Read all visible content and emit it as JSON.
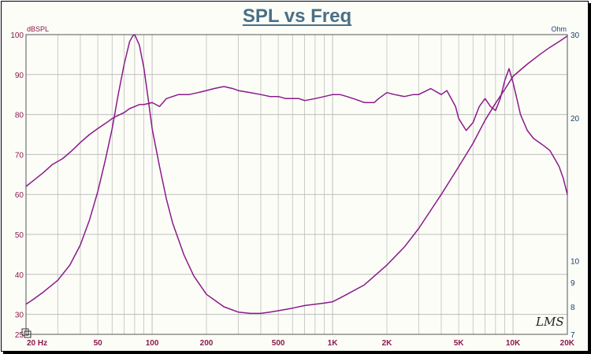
{
  "chart_data": {
    "type": "line",
    "title": "SPL vs Freq",
    "watermark": "LMS",
    "colors": {
      "title": "#4a6f86",
      "axis_left": "#8b1a4a",
      "axis_right": "#1f3f6f",
      "axis_bottom": "#8b1a4a",
      "grid": "#bdbdbd",
      "curve": "#8a1a8a",
      "frame_bg": "#fdfdf8",
      "plot_border": "#555555"
    },
    "x_axis": {
      "scale": "log",
      "range": [
        20,
        20000
      ],
      "tick_values": [
        20,
        50,
        100,
        200,
        500,
        1000,
        2000,
        5000,
        10000,
        20000
      ],
      "tick_labels": [
        "20 Hz",
        "50",
        "100",
        "200",
        "500",
        "1K",
        "2K",
        "5K",
        "10K",
        "20K"
      ]
    },
    "y_left": {
      "label": "dBSPL",
      "range": [
        25,
        100
      ],
      "ticks": [
        25,
        30,
        40,
        50,
        60,
        70,
        80,
        90,
        100
      ]
    },
    "y_right": {
      "label": "Ohm",
      "scale": "log",
      "range": [
        7,
        30
      ],
      "ticks": [
        7,
        8,
        9,
        10,
        20,
        30
      ]
    },
    "series": [
      {
        "axis": "left",
        "x": [
          20,
          22,
          25,
          28,
          32,
          36,
          40,
          45,
          50,
          56,
          60,
          63,
          70,
          75,
          80,
          85,
          90,
          100,
          110,
          120,
          140,
          160,
          180,
          200,
          220,
          250,
          280,
          300,
          350,
          400,
          450,
          500,
          550,
          600,
          650,
          700,
          800,
          900,
          1000,
          1100,
          1200,
          1300,
          1400,
          1500,
          1700,
          1800,
          2000,
          2200,
          2500,
          2800,
          3000,
          3500,
          4000,
          4300,
          4800,
          5000,
          5500,
          6000,
          6500,
          7000,
          7500,
          8000,
          8500,
          9000,
          9500,
          10000,
          10500,
          11000,
          12000,
          13000,
          14000,
          15000,
          16000,
          17000,
          18000,
          19000,
          20000
        ],
        "y": [
          62,
          63.5,
          65.5,
          67.5,
          69,
          71,
          73,
          75,
          76.5,
          78,
          79,
          79.5,
          80.5,
          81.5,
          82,
          82.5,
          82.5,
          83,
          82,
          84,
          85,
          85,
          85.5,
          86,
          86.5,
          87,
          86.5,
          86,
          85.5,
          85,
          84.5,
          84.5,
          84,
          84,
          84,
          83.5,
          84,
          84.5,
          85,
          85,
          84.5,
          84,
          83.5,
          83,
          83,
          84,
          85.5,
          85,
          84.5,
          85,
          85,
          86.5,
          85,
          86,
          82,
          79,
          76,
          78,
          82,
          84,
          82,
          81,
          84,
          88.5,
          91.5,
          88,
          84,
          80,
          76,
          74,
          73,
          72,
          71,
          69,
          67,
          64,
          60
        ]
      },
      {
        "axis": "right",
        "x": [
          20,
          22,
          25,
          30,
          35,
          40,
          45,
          50,
          55,
          60,
          65,
          70,
          75,
          78,
          80,
          85,
          90,
          95,
          100,
          110,
          120,
          130,
          150,
          170,
          200,
          250,
          300,
          350,
          400,
          450,
          500,
          600,
          700,
          800,
          900,
          1000,
          1100,
          1200,
          1500,
          2000,
          2500,
          3000,
          4000,
          5000,
          6000,
          7000,
          8000,
          9000,
          10000,
          12000,
          14000,
          16000,
          18000,
          20000
        ],
        "y": [
          8.1,
          8.3,
          8.6,
          9.1,
          9.8,
          10.8,
          12.2,
          14.0,
          16.3,
          19.0,
          22.5,
          26.0,
          29.0,
          29.8,
          30.0,
          28.5,
          25.5,
          22.0,
          19.0,
          15.8,
          13.5,
          12.0,
          10.3,
          9.3,
          8.5,
          8.0,
          7.8,
          7.75,
          7.75,
          7.8,
          7.85,
          7.95,
          8.05,
          8.1,
          8.15,
          8.2,
          8.35,
          8.5,
          8.9,
          9.8,
          10.7,
          11.7,
          13.8,
          15.8,
          17.7,
          19.8,
          21.5,
          23.0,
          24.5,
          26.0,
          27.2,
          28.2,
          29.0,
          29.8
        ]
      }
    ]
  }
}
